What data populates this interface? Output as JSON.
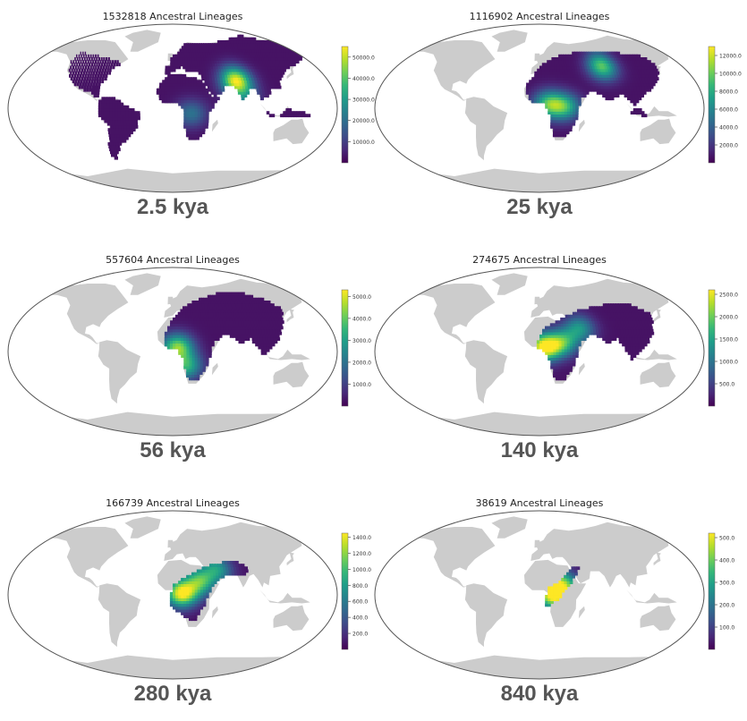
{
  "colors": {
    "land": "#cccccc",
    "outline": "#555555",
    "viridis": [
      "#440154",
      "#482878",
      "#3e4a89",
      "#31688e",
      "#26828e",
      "#1f9e89",
      "#35b779",
      "#6ece58",
      "#b5de2b",
      "#fde725"
    ]
  },
  "chart_data": [
    {
      "type": "heatmap",
      "title": "1532818 Ancestral Lineages",
      "time_label": "2.5 kya",
      "colorbar_ticks": [
        10000,
        20000,
        30000,
        40000,
        50000
      ],
      "colorbar_tick_labels": [
        "10000.0",
        "20000.0",
        "30000.0",
        "40000.0",
        "50000.0"
      ],
      "colorbar_range": [
        0,
        55000
      ],
      "region": "africa,eurasia,south asia,south america,north america coasts,japan,new guinea",
      "hotspots": [
        {
          "lon": 72,
          "lat": 30,
          "value": 50000
        },
        {
          "lon": 20,
          "lat": -5,
          "value": 18000
        },
        {
          "lon": 78,
          "lat": 12,
          "value": 16000
        }
      ]
    },
    {
      "type": "heatmap",
      "title": "1116902 Ancestral Lineages",
      "time_label": "25 kya",
      "colorbar_ticks": [
        2000,
        4000,
        6000,
        8000,
        10000,
        12000
      ],
      "colorbar_tick_labels": [
        "2000.0",
        "4000.0",
        "6000.0",
        "8000.0",
        "10000.0",
        "12000.0"
      ],
      "colorbar_range": [
        0,
        13000
      ],
      "region": "africa,eurasia,south asia,beringia",
      "hotspots": [
        {
          "lon": 10,
          "lat": 5,
          "value": 8000
        },
        {
          "lon": 28,
          "lat": 2,
          "value": 7000
        },
        {
          "lon": 75,
          "lat": 45,
          "value": 9000
        }
      ]
    },
    {
      "type": "heatmap",
      "title": "557604 Ancestral Lineages",
      "time_label": "56 kya",
      "colorbar_ticks": [
        1000,
        2000,
        3000,
        4000,
        5000
      ],
      "colorbar_tick_labels": [
        "1000.0",
        "2000.0",
        "3000.0",
        "4000.0",
        "5000.0"
      ],
      "colorbar_range": [
        0,
        5300
      ],
      "region": "africa,eurasia,south asia",
      "hotspots": [
        {
          "lon": 5,
          "lat": 5,
          "value": 4000
        },
        {
          "lon": 15,
          "lat": -15,
          "value": 3000
        }
      ]
    },
    {
      "type": "heatmap",
      "title": "274675 Ancestral Lineages",
      "time_label": "140 kya",
      "colorbar_ticks": [
        500,
        1000,
        1500,
        2000,
        2500
      ],
      "colorbar_tick_labels": [
        "500.0",
        "1000.0",
        "1500.0",
        "2000.0",
        "2500.0"
      ],
      "colorbar_range": [
        0,
        2600
      ],
      "region": "africa,eurasia,south asia",
      "hotspots": [
        {
          "lon": 5,
          "lat": 5,
          "value": 2500
        },
        {
          "lon": 25,
          "lat": 10,
          "value": 1500
        },
        {
          "lon": 45,
          "lat": 25,
          "value": 1200
        }
      ]
    },
    {
      "type": "heatmap",
      "title": "166739 Ancestral Lineages",
      "time_label": "280 kya",
      "colorbar_ticks": [
        200,
        400,
        600,
        800,
        1000,
        1200,
        1400
      ],
      "colorbar_tick_labels": [
        "200.0",
        "400.0",
        "600.0",
        "800.0",
        "1000.0",
        "1200.0",
        "1400.0"
      ],
      "colorbar_range": [
        0,
        1450
      ],
      "region": "africa,middle east,south asia",
      "hotspots": [
        {
          "lon": 10,
          "lat": 2,
          "value": 1400
        },
        {
          "lon": 30,
          "lat": 15,
          "value": 900
        },
        {
          "lon": 50,
          "lat": 28,
          "value": 700
        }
      ]
    },
    {
      "type": "heatmap",
      "title": "38619 Ancestral Lineages",
      "time_label": "840 kya",
      "colorbar_ticks": [
        100,
        200,
        300,
        400,
        500
      ],
      "colorbar_tick_labels": [
        "100.0",
        "200.0",
        "300.0",
        "400.0",
        "500.0"
      ],
      "colorbar_range": [
        0,
        520
      ],
      "region": "central africa,middle east",
      "hotspots": [
        {
          "lon": 15,
          "lat": 0,
          "value": 480
        },
        {
          "lon": 25,
          "lat": 12,
          "value": 350
        }
      ]
    }
  ]
}
